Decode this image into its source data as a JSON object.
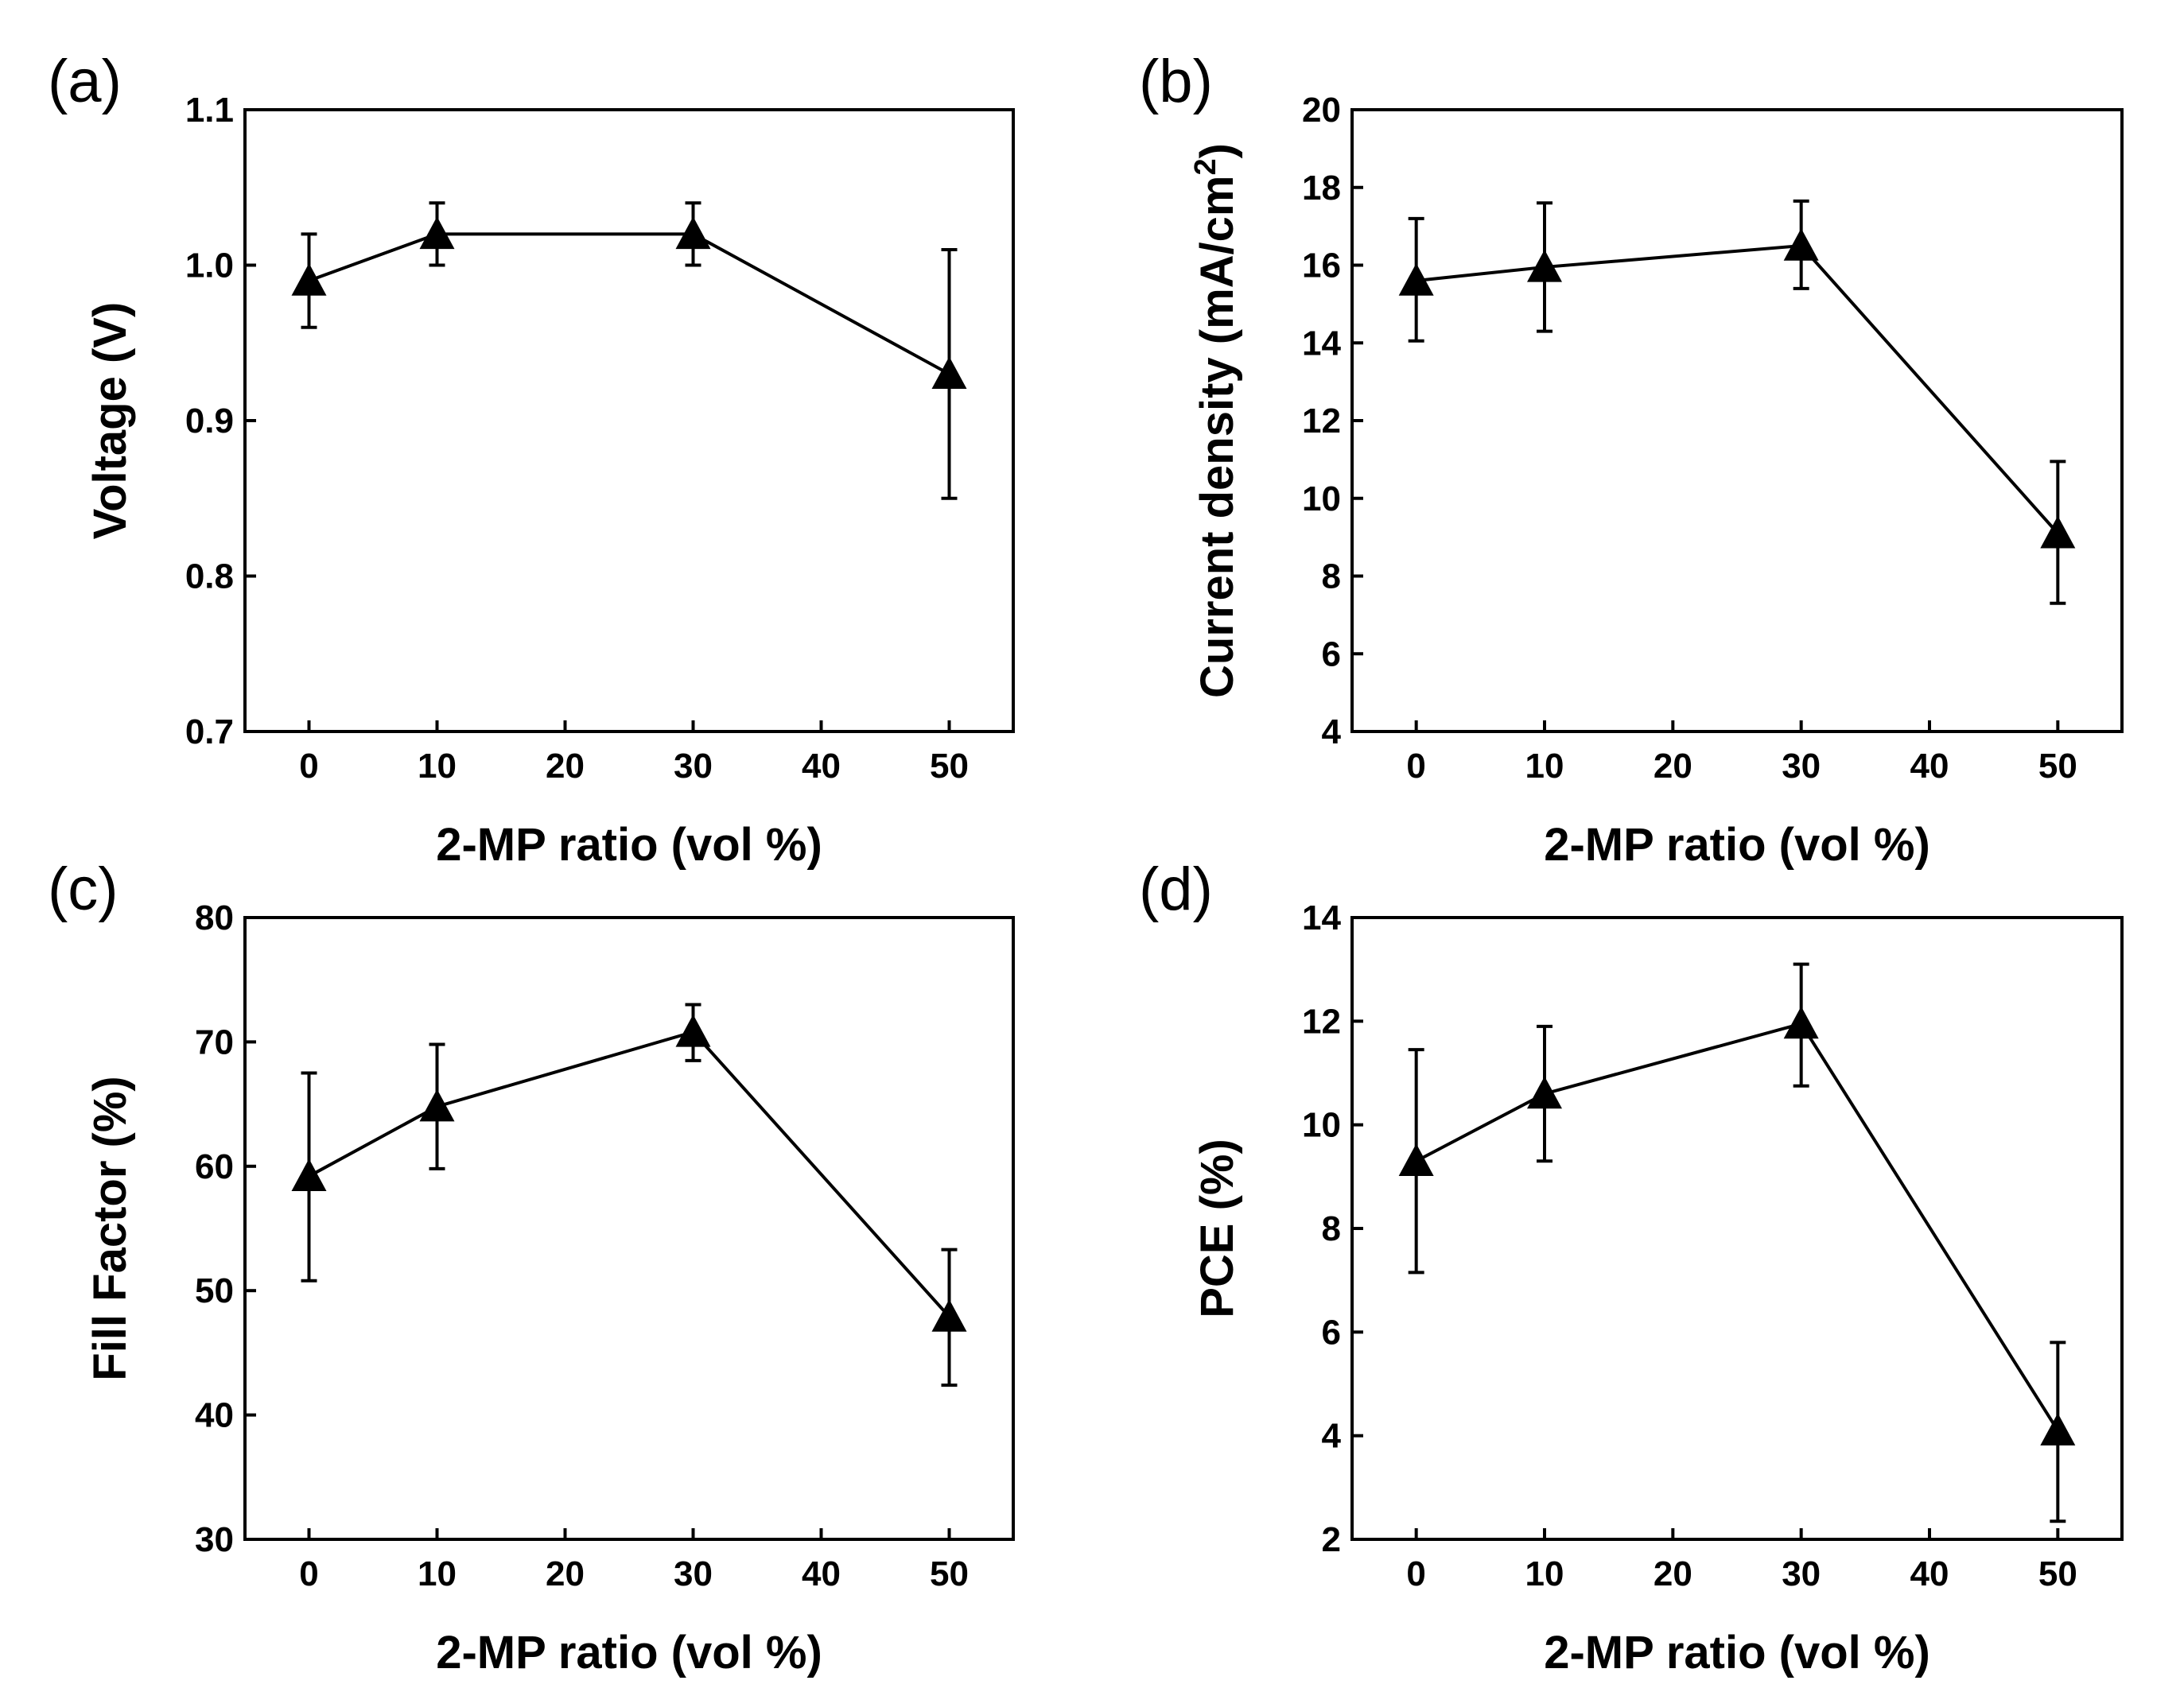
{
  "chart_data": [
    {
      "type": "line",
      "panel": "(a)",
      "xlabel": "2-MP ratio (vol %)",
      "ylabel": "Voltage (V)",
      "xlim": [
        -5,
        55
      ],
      "ylim": [
        0.7,
        1.1
      ],
      "xticks": [
        0,
        10,
        20,
        30,
        40,
        50
      ],
      "yticks": [
        0.7,
        0.8,
        0.9,
        1.0,
        1.1
      ],
      "xtick_labels": [
        "0",
        "10",
        "20",
        "30",
        "40",
        "50"
      ],
      "ytick_labels": [
        "0.7",
        "0.8",
        "0.9",
        "1.0",
        "1.1"
      ],
      "series": [
        {
          "name": "Voltage",
          "x": [
            0,
            10,
            30,
            50
          ],
          "y": [
            0.99,
            1.02,
            1.02,
            0.93
          ],
          "err_low": [
            0.96,
            1.0,
            1.0,
            0.85
          ],
          "err_high": [
            1.02,
            1.04,
            1.04,
            1.01
          ],
          "marker": "triangle"
        }
      ]
    },
    {
      "type": "line",
      "panel": "(b)",
      "xlabel": "2-MP ratio (vol %)",
      "ylabel": "Current density (mA/cm",
      "ylabel_sup": "2",
      "ylabel_end": ")",
      "xlim": [
        -5,
        55
      ],
      "ylim": [
        4,
        20
      ],
      "xticks": [
        0,
        10,
        20,
        30,
        40,
        50
      ],
      "yticks": [
        4,
        6,
        8,
        10,
        12,
        14,
        16,
        18,
        20
      ],
      "xtick_labels": [
        "0",
        "10",
        "20",
        "30",
        "40",
        "50"
      ],
      "ytick_labels": [
        "4",
        "6",
        "8",
        "10",
        "12",
        "14",
        "16",
        "18",
        "20"
      ],
      "series": [
        {
          "name": "Current density",
          "x": [
            0,
            10,
            30,
            50
          ],
          "y": [
            15.6,
            15.95,
            16.5,
            9.1
          ],
          "err_low": [
            14.05,
            14.3,
            15.4,
            7.3
          ],
          "err_high": [
            17.2,
            17.6,
            17.65,
            10.95
          ],
          "marker": "triangle"
        }
      ]
    },
    {
      "type": "line",
      "panel": "(c)",
      "xlabel": "2-MP ratio (vol %)",
      "ylabel": "Fill Factor (%)",
      "xlim": [
        -5,
        55
      ],
      "ylim": [
        30,
        80
      ],
      "xticks": [
        0,
        10,
        20,
        30,
        40,
        50
      ],
      "yticks": [
        30,
        40,
        50,
        60,
        70,
        80
      ],
      "xtick_labels": [
        "0",
        "10",
        "20",
        "30",
        "40",
        "50"
      ],
      "ytick_labels": [
        "30",
        "40",
        "50",
        "60",
        "70",
        "80"
      ],
      "series": [
        {
          "name": "Fill Factor",
          "x": [
            0,
            10,
            30,
            50
          ],
          "y": [
            59.2,
            64.8,
            70.8,
            47.9
          ],
          "err_low": [
            50.8,
            59.8,
            68.5,
            42.4
          ],
          "err_high": [
            67.5,
            69.8,
            73.0,
            53.3
          ],
          "marker": "triangle"
        }
      ]
    },
    {
      "type": "line",
      "panel": "(d)",
      "xlabel": "2-MP ratio (vol %)",
      "ylabel": "PCE (%)",
      "xlim": [
        -5,
        55
      ],
      "ylim": [
        2,
        14
      ],
      "xticks": [
        0,
        10,
        20,
        30,
        40,
        50
      ],
      "yticks": [
        2,
        4,
        6,
        8,
        10,
        12,
        14
      ],
      "xtick_labels": [
        "0",
        "10",
        "20",
        "30",
        "40",
        "50"
      ],
      "ytick_labels": [
        "2",
        "4",
        "6",
        "8",
        "10",
        "12",
        "14"
      ],
      "series": [
        {
          "name": "PCE",
          "x": [
            0,
            10,
            30,
            50
          ],
          "y": [
            9.3,
            10.6,
            11.95,
            4.1
          ],
          "err_low": [
            7.15,
            9.3,
            10.75,
            2.35
          ],
          "err_high": [
            11.45,
            11.9,
            13.1,
            5.8
          ],
          "marker": "triangle"
        }
      ]
    }
  ]
}
